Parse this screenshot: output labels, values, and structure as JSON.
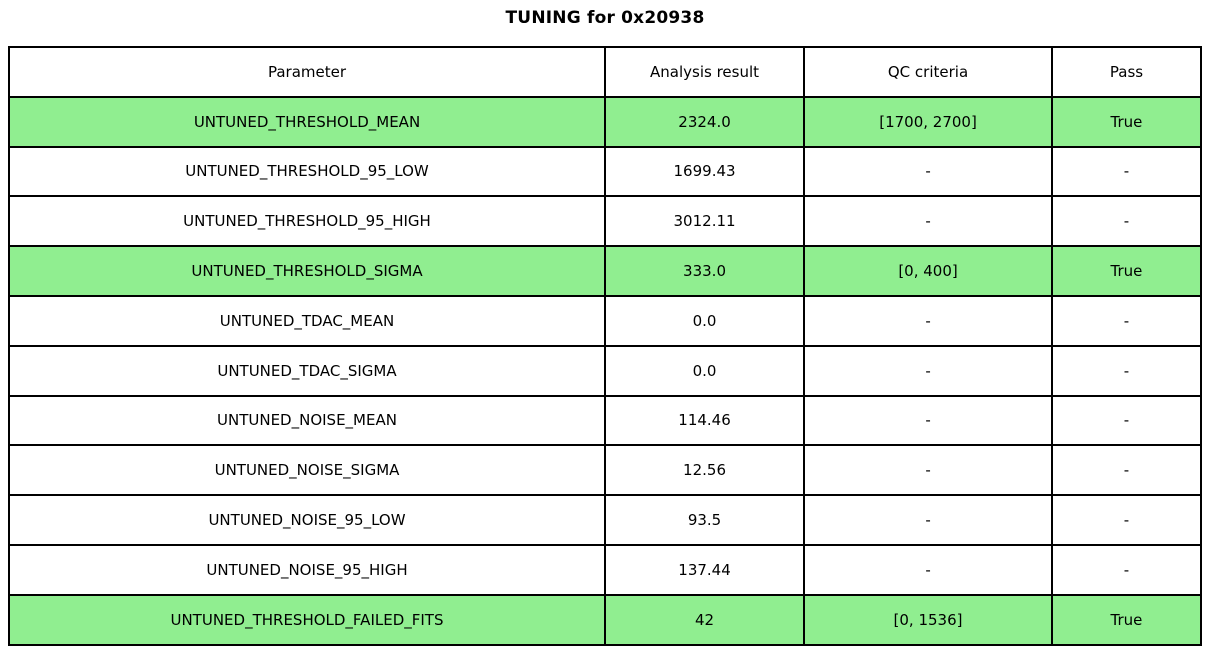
{
  "chart_data": {
    "type": "table",
    "title": "TUNING for 0x20938",
    "headers": [
      "Parameter",
      "Analysis result",
      "QC criteria",
      "Pass"
    ],
    "rows": [
      {
        "parameter": "UNTUNED_THRESHOLD_MEAN",
        "result": "2324.0",
        "qc": "[1700, 2700]",
        "pass": "True",
        "highlight": true
      },
      {
        "parameter": "UNTUNED_THRESHOLD_95_LOW",
        "result": "1699.43",
        "qc": "-",
        "pass": "-",
        "highlight": false
      },
      {
        "parameter": "UNTUNED_THRESHOLD_95_HIGH",
        "result": "3012.11",
        "qc": "-",
        "pass": "-",
        "highlight": false
      },
      {
        "parameter": "UNTUNED_THRESHOLD_SIGMA",
        "result": "333.0",
        "qc": "[0, 400]",
        "pass": "True",
        "highlight": true
      },
      {
        "parameter": "UNTUNED_TDAC_MEAN",
        "result": "0.0",
        "qc": "-",
        "pass": "-",
        "highlight": false
      },
      {
        "parameter": "UNTUNED_TDAC_SIGMA",
        "result": "0.0",
        "qc": "-",
        "pass": "-",
        "highlight": false
      },
      {
        "parameter": "UNTUNED_NOISE_MEAN",
        "result": "114.46",
        "qc": "-",
        "pass": "-",
        "highlight": false
      },
      {
        "parameter": "UNTUNED_NOISE_SIGMA",
        "result": "12.56",
        "qc": "-",
        "pass": "-",
        "highlight": false
      },
      {
        "parameter": "UNTUNED_NOISE_95_LOW",
        "result": "93.5",
        "qc": "-",
        "pass": "-",
        "highlight": false
      },
      {
        "parameter": "UNTUNED_NOISE_95_HIGH",
        "result": "137.44",
        "qc": "-",
        "pass": "-",
        "highlight": false
      },
      {
        "parameter": "UNTUNED_THRESHOLD_FAILED_FITS",
        "result": "42",
        "qc": "[0, 1536]",
        "pass": "True",
        "highlight": true
      }
    ],
    "colors": {
      "highlight_green": "#90EE90",
      "border": "#000000",
      "background": "#FFFFFF",
      "text": "#000000"
    },
    "layout": {
      "column_widths_pct": [
        50.0,
        16.7,
        20.8,
        12.5
      ],
      "grid": true,
      "cell_text_align": "center"
    }
  }
}
